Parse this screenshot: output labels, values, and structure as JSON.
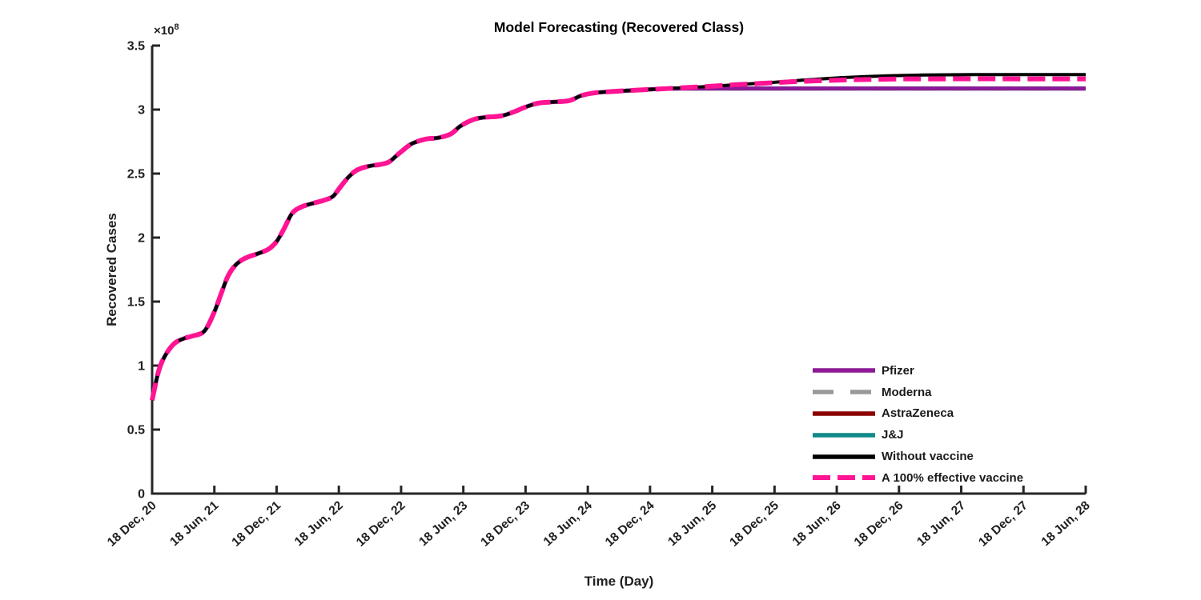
{
  "title": "Model Forecasting (Recovered Class)",
  "x_axis": {
    "label": "Time (Day)",
    "tick_labels": [
      "18 Dec, 20",
      "18 Jun, 21",
      "18 Dec, 21",
      "18 Jun, 22",
      "18 Dec, 22",
      "18 Jun, 23",
      "18 Dec, 23",
      "18 Jun, 24",
      "18 Dec, 24",
      "18 Jun, 25",
      "18 Dec, 25",
      "18 Jun, 26",
      "18 Dec, 26",
      "18 Jun, 27",
      "18 Dec, 27",
      "18 Jun, 28"
    ]
  },
  "y_axis": {
    "label": "Recovered Cases",
    "exponent_base": "×10",
    "exponent_power": "8",
    "tick_labels": [
      "0",
      "0.5",
      "1",
      "1.5",
      "2",
      "2.5",
      "3",
      "3.5"
    ],
    "tick_values": [
      0,
      0.5,
      1,
      1.5,
      2,
      2.5,
      3,
      3.5
    ]
  },
  "colors": {
    "axis": "#262626",
    "pfizer": "#8C1A96",
    "moderna": "#999999",
    "astrazeneca": "#8B0000",
    "jj": "#118A8A",
    "without_vaccine": "#000000",
    "effective_vaccine": "#FF1493"
  },
  "chart_data": {
    "type": "line",
    "title": "Model Forecasting (Recovered Class)",
    "xlabel": "Time (Day)",
    "ylabel": "Recovered Cases",
    "y_scale": "1e8",
    "xlim": [
      0,
      15
    ],
    "ylim": [
      0,
      3.5
    ],
    "grid": false,
    "x_unit": "tick index, 6 months per unit, 0 = 18 Dec 2020, 15 = 18 Jun 2028",
    "shared_history_points": [
      [
        0,
        0.73
      ],
      [
        0.1,
        0.95
      ],
      [
        0.2,
        1.07
      ],
      [
        0.35,
        1.17
      ],
      [
        0.5,
        1.21
      ],
      [
        0.64,
        1.23
      ],
      [
        0.84,
        1.27
      ],
      [
        1.0,
        1.42
      ],
      [
        1.1,
        1.55
      ],
      [
        1.22,
        1.7
      ],
      [
        1.35,
        1.79
      ],
      [
        1.5,
        1.84
      ],
      [
        1.7,
        1.875
      ],
      [
        1.87,
        1.91
      ],
      [
        2.0,
        1.97
      ],
      [
        2.12,
        2.07
      ],
      [
        2.25,
        2.19
      ],
      [
        2.4,
        2.24
      ],
      [
        2.6,
        2.27
      ],
      [
        2.75,
        2.29
      ],
      [
        2.9,
        2.32
      ],
      [
        3.0,
        2.38
      ],
      [
        3.15,
        2.47
      ],
      [
        3.3,
        2.53
      ],
      [
        3.5,
        2.56
      ],
      [
        3.65,
        2.57
      ],
      [
        3.8,
        2.59
      ],
      [
        3.95,
        2.65
      ],
      [
        4.1,
        2.71
      ],
      [
        4.2,
        2.74
      ],
      [
        4.4,
        2.77
      ],
      [
        4.6,
        2.78
      ],
      [
        4.8,
        2.81
      ],
      [
        4.95,
        2.87
      ],
      [
        5.15,
        2.92
      ],
      [
        5.35,
        2.94
      ],
      [
        5.6,
        2.95
      ],
      [
        5.8,
        2.98
      ],
      [
        6.0,
        3.02
      ],
      [
        6.2,
        3.05
      ],
      [
        6.45,
        3.06
      ],
      [
        6.7,
        3.07
      ],
      [
        6.9,
        3.11
      ],
      [
        7.1,
        3.13
      ],
      [
        7.35,
        3.14
      ],
      [
        7.7,
        3.15
      ],
      [
        8.1,
        3.16
      ]
    ],
    "series": [
      {
        "name": "Pfizer",
        "color": "#8C1A96",
        "style": "solid",
        "dash": "",
        "width": 5,
        "tail_points": [
          [
            8.5,
            3.165
          ],
          [
            9.5,
            3.165
          ],
          [
            11,
            3.165
          ],
          [
            13,
            3.165
          ],
          [
            15,
            3.165
          ]
        ],
        "end_value_e8": 3.165
      },
      {
        "name": "Moderna",
        "color": "#999999",
        "style": "dashed",
        "dash": "26 21",
        "width": 5,
        "tail_points": [
          [
            8.5,
            3.165
          ],
          [
            9.5,
            3.165
          ],
          [
            11,
            3.165
          ],
          [
            13,
            3.165
          ],
          [
            15,
            3.165
          ]
        ],
        "end_value_e8": 3.165
      },
      {
        "name": "AstraZeneca",
        "color": "#8B0000",
        "style": "solid",
        "dash": "",
        "width": 5,
        "tail_points": [
          [
            8.5,
            3.165
          ],
          [
            9.5,
            3.165
          ],
          [
            11,
            3.165
          ],
          [
            13,
            3.165
          ],
          [
            15,
            3.165
          ]
        ],
        "end_value_e8": 3.165
      },
      {
        "name": "J&J",
        "color": "#118A8A",
        "style": "solid",
        "dash": "",
        "width": 5,
        "tail_points": [
          [
            8.5,
            3.165
          ],
          [
            9.5,
            3.165
          ],
          [
            11,
            3.165
          ],
          [
            13,
            3.165
          ],
          [
            15,
            3.165
          ]
        ],
        "end_value_e8": 3.165
      },
      {
        "name": "Without vaccine",
        "color": "#000000",
        "style": "solid",
        "dash": "",
        "width": 4,
        "tail_points": [
          [
            8.5,
            3.17
          ],
          [
            8.9,
            3.18
          ],
          [
            9.4,
            3.195
          ],
          [
            9.9,
            3.21
          ],
          [
            10.4,
            3.228
          ],
          [
            11.1,
            3.25
          ],
          [
            11.7,
            3.262
          ],
          [
            12.4,
            3.27
          ],
          [
            13.2,
            3.273
          ],
          [
            15,
            3.273
          ]
        ],
        "end_value_e8": 3.273
      },
      {
        "name": "A 100% effective vaccine",
        "color": "#FF1493",
        "style": "dashed",
        "dash": "22 9",
        "width": 6,
        "tail_points": [
          [
            8.5,
            3.17
          ],
          [
            8.9,
            3.18
          ],
          [
            9.4,
            3.195
          ],
          [
            9.9,
            3.208
          ],
          [
            10.4,
            3.22
          ],
          [
            11.1,
            3.231
          ],
          [
            11.7,
            3.237
          ],
          [
            12.4,
            3.24
          ],
          [
            15,
            3.24
          ]
        ],
        "end_value_e8": 3.24
      }
    ],
    "draw_order": [
      "Moderna",
      "AstraZeneca",
      "J&J",
      "Pfizer",
      "Without vaccine",
      "A 100% effective vaccine"
    ],
    "legend": {
      "position": "lower right, no border",
      "entries": [
        {
          "label": "Pfizer",
          "series": "Pfizer"
        },
        {
          "label": "Moderna",
          "series": "Moderna"
        },
        {
          "label": "AstraZeneca",
          "series": "AstraZeneca"
        },
        {
          "label": "J&J",
          "series": "J&J"
        },
        {
          "label": "Without vaccine",
          "series": "Without vaccine"
        },
        {
          "label": "A 100% effective vaccine",
          "series": "A 100% effective vaccine"
        }
      ]
    }
  }
}
